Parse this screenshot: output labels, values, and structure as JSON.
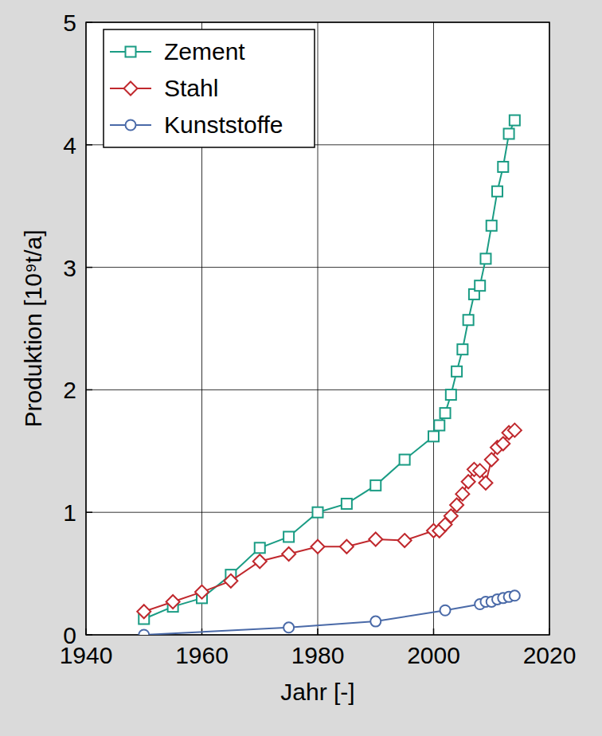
{
  "chart_data": {
    "type": "line",
    "x_label": "Jahr [-]",
    "y_label": "Produktion [10⁹t/a]",
    "xlim": [
      1940,
      2020
    ],
    "xticks": [
      1940,
      1960,
      1980,
      2000,
      2020
    ],
    "ylim": [
      0,
      5
    ],
    "yticks": [
      0,
      1,
      2,
      3,
      4,
      5
    ],
    "grid": true,
    "legend": "upper left",
    "series": [
      {
        "name": "Zement",
        "color": "#1a9c84",
        "marker": "square",
        "x": [
          1950,
          1955,
          1960,
          1965,
          1970,
          1975,
          1980,
          1985,
          1990,
          1995,
          2000,
          2001,
          2002,
          2003,
          2004,
          2005,
          2006,
          2007,
          2008,
          2009,
          2010,
          2011,
          2012,
          2013,
          2014
        ],
        "values": [
          0.13,
          0.23,
          0.3,
          0.49,
          0.71,
          0.8,
          1.0,
          1.07,
          1.22,
          1.43,
          1.62,
          1.71,
          1.81,
          1.96,
          2.15,
          2.33,
          2.57,
          2.78,
          2.85,
          3.07,
          3.34,
          3.62,
          3.82,
          4.09,
          4.2
        ]
      },
      {
        "name": "Stahl",
        "color": "#c0282d",
        "marker": "diamond",
        "x": [
          1950,
          1955,
          1960,
          1965,
          1970,
          1975,
          1980,
          1985,
          1990,
          1995,
          2000,
          2001,
          2002,
          2003,
          2004,
          2005,
          2006,
          2007,
          2008,
          2009,
          2010,
          2011,
          2012,
          2013,
          2014
        ],
        "values": [
          0.19,
          0.27,
          0.35,
          0.44,
          0.6,
          0.66,
          0.72,
          0.72,
          0.78,
          0.77,
          0.85,
          0.85,
          0.9,
          0.97,
          1.06,
          1.15,
          1.25,
          1.35,
          1.34,
          1.24,
          1.43,
          1.53,
          1.56,
          1.65,
          1.67
        ]
      },
      {
        "name": "Kunststoffe",
        "color": "#4a6aa8",
        "marker": "circle",
        "x": [
          1950,
          1975,
          1990,
          2002,
          2008,
          2009,
          2010,
          2011,
          2012,
          2013,
          2014
        ],
        "values": [
          0,
          0.06,
          0.11,
          0.2,
          0.25,
          0.27,
          0.27,
          0.29,
          0.3,
          0.31,
          0.32
        ]
      }
    ]
  }
}
